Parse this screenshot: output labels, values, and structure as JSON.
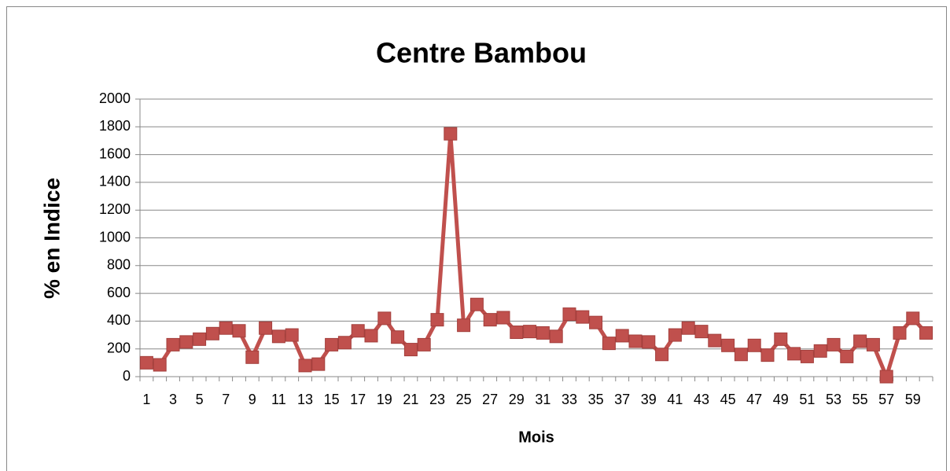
{
  "chart_data": {
    "type": "line",
    "title": "Centre Bambou",
    "x_label": "Mois",
    "y_label": "% en Indice",
    "categories": [
      1,
      null,
      3,
      null,
      5,
      null,
      7,
      null,
      9,
      null,
      11,
      null,
      13,
      null,
      15,
      null,
      17,
      null,
      19,
      null,
      21,
      null,
      23,
      null,
      25,
      null,
      27,
      null,
      29,
      null,
      31,
      null,
      33,
      null,
      35,
      null,
      37,
      null,
      39,
      null,
      41,
      null,
      43,
      null,
      45,
      null,
      47,
      null,
      49,
      null,
      51,
      null,
      53,
      null,
      55,
      null,
      57,
      null,
      59,
      null
    ],
    "series": [
      {
        "name": "Centre Bambou",
        "color": "#c0504d",
        "values": [
          100,
          85,
          230,
          250,
          270,
          310,
          350,
          330,
          140,
          350,
          290,
          300,
          80,
          90,
          230,
          245,
          330,
          295,
          420,
          285,
          195,
          230,
          410,
          1750,
          370,
          520,
          410,
          425,
          320,
          325,
          315,
          290,
          450,
          430,
          390,
          240,
          295,
          255,
          250,
          160,
          300,
          350,
          325,
          260,
          225,
          160,
          225,
          155,
          270,
          165,
          145,
          185,
          230,
          145,
          255,
          230,
          0,
          315,
          420,
          315
        ]
      }
    ],
    "ylim": [
      0,
      2000
    ],
    "yticks": [
      0,
      200,
      400,
      600,
      800,
      1000,
      1200,
      1400,
      1600,
      1800,
      2000
    ],
    "grid": true
  }
}
